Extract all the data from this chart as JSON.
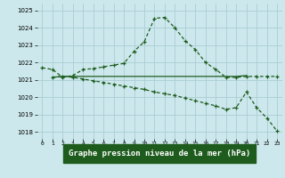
{
  "title": "Graphe pression niveau de la mer (hPa)",
  "background_color": "#cce8ec",
  "grid_color": "#aacdd4",
  "line_color": "#1e5c1e",
  "label_bg": "#1e5c1e",
  "label_fg": "#ffffff",
  "x_ticks": [
    0,
    1,
    2,
    3,
    4,
    5,
    6,
    7,
    8,
    9,
    10,
    11,
    12,
    13,
    14,
    15,
    16,
    17,
    18,
    19,
    20,
    21,
    22,
    23
  ],
  "ylim": [
    1017.6,
    1025.4
  ],
  "yticks": [
    1018,
    1019,
    1020,
    1021,
    1022,
    1023,
    1024,
    1025
  ],
  "line1_x": [
    0,
    1,
    2,
    3,
    4,
    5,
    6,
    7,
    8,
    9,
    10,
    11,
    12,
    13,
    14,
    15,
    16,
    17,
    18,
    19,
    20,
    21,
    22,
    23
  ],
  "line1_y": [
    1021.7,
    1021.6,
    1021.15,
    1021.25,
    1021.6,
    1021.65,
    1021.75,
    1021.85,
    1021.95,
    1022.65,
    1023.2,
    1024.55,
    1024.6,
    1024.0,
    1023.25,
    1022.75,
    1022.0,
    1021.6,
    1021.15,
    1021.15,
    1021.2,
    1021.2,
    1021.2,
    1021.2
  ],
  "line2_x": [
    1,
    2,
    3,
    4,
    5,
    6,
    7,
    8,
    9,
    10,
    11,
    12,
    13,
    14,
    15,
    16,
    17,
    18,
    19,
    20
  ],
  "line2_y": [
    1021.15,
    1021.2,
    1021.2,
    1021.2,
    1021.2,
    1021.2,
    1021.2,
    1021.2,
    1021.2,
    1021.2,
    1021.2,
    1021.2,
    1021.2,
    1021.2,
    1021.2,
    1021.2,
    1021.2,
    1021.2,
    1021.2,
    1021.25
  ],
  "line3_x": [
    1,
    2,
    3,
    4,
    5,
    6,
    7,
    8,
    9,
    10,
    11,
    12,
    13,
    14,
    15,
    16,
    17,
    18,
    19,
    20,
    21,
    22,
    23
  ],
  "line3_y": [
    1021.15,
    1021.2,
    1021.15,
    1021.05,
    1020.95,
    1020.85,
    1020.75,
    1020.65,
    1020.55,
    1020.45,
    1020.3,
    1020.2,
    1020.1,
    1019.95,
    1019.8,
    1019.65,
    1019.5,
    1019.3,
    1019.4,
    1020.3,
    1019.4,
    1018.8,
    1018.05
  ]
}
